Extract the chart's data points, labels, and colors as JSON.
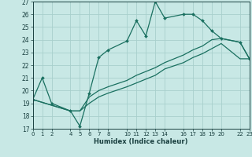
{
  "xlabel": "Humidex (Indice chaleur)",
  "xlim": [
    0,
    23
  ],
  "ylim": [
    17,
    27
  ],
  "xticks": [
    0,
    1,
    2,
    4,
    5,
    6,
    7,
    8,
    10,
    11,
    12,
    13,
    14,
    16,
    17,
    18,
    19,
    20,
    22,
    23
  ],
  "yticks": [
    17,
    18,
    19,
    20,
    21,
    22,
    23,
    24,
    25,
    26,
    27
  ],
  "bg_color": "#c8e8e5",
  "grid_color": "#a8d0cc",
  "line_color": "#1a7060",
  "line1_x": [
    0,
    1,
    2,
    4,
    5,
    6,
    7,
    8,
    10,
    11,
    12,
    13,
    14,
    16,
    17,
    18,
    19,
    20,
    22,
    23
  ],
  "line1_y": [
    19.3,
    21.0,
    19.0,
    18.4,
    17.2,
    19.8,
    22.6,
    23.2,
    23.9,
    25.5,
    24.3,
    27.0,
    25.7,
    26.0,
    26.0,
    25.5,
    24.7,
    24.1,
    23.8,
    22.5
  ],
  "line2_x": [
    0,
    4,
    5,
    6,
    7,
    8,
    10,
    11,
    12,
    13,
    14,
    16,
    17,
    18,
    19,
    20,
    22,
    23
  ],
  "line2_y": [
    19.3,
    18.4,
    18.4,
    19.5,
    20.0,
    20.3,
    20.8,
    21.2,
    21.5,
    21.8,
    22.2,
    22.8,
    23.2,
    23.5,
    24.0,
    24.1,
    23.8,
    22.5
  ],
  "line3_x": [
    0,
    4,
    5,
    6,
    7,
    8,
    10,
    11,
    12,
    13,
    14,
    16,
    17,
    18,
    19,
    20,
    22,
    23
  ],
  "line3_y": [
    19.3,
    18.4,
    18.4,
    19.0,
    19.5,
    19.8,
    20.3,
    20.6,
    20.9,
    21.2,
    21.7,
    22.2,
    22.6,
    22.9,
    23.3,
    23.7,
    22.5,
    22.5
  ]
}
